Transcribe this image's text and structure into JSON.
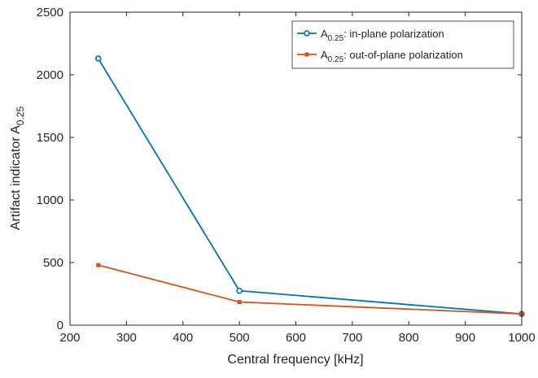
{
  "chart_data": {
    "type": "line",
    "title": "",
    "xlabel": "Central frequency [kHz]",
    "ylabel_main": "Artifact indicator A",
    "ylabel_sub": "0.25",
    "xlim": [
      200,
      1000
    ],
    "ylim": [
      0,
      2500
    ],
    "xticks": [
      200,
      300,
      400,
      500,
      600,
      700,
      800,
      900,
      1000
    ],
    "yticks": [
      0,
      500,
      1000,
      1500,
      2000,
      2500
    ],
    "x": [
      250,
      500,
      1000
    ],
    "legend_position": "top-right",
    "grid": false,
    "series": [
      {
        "legend_main": "A",
        "legend_sub": "0.25",
        "legend_rest": ": in-plane polarization",
        "color": "#0072BD",
        "marker": "circle",
        "values": [
          2130,
          275,
          90
        ]
      },
      {
        "legend_main": "A",
        "legend_sub": "0.25",
        "legend_rest": ": out-of-plane polarization",
        "color": "#D95319",
        "marker": "square",
        "values": [
          480,
          185,
          90
        ]
      }
    ]
  }
}
